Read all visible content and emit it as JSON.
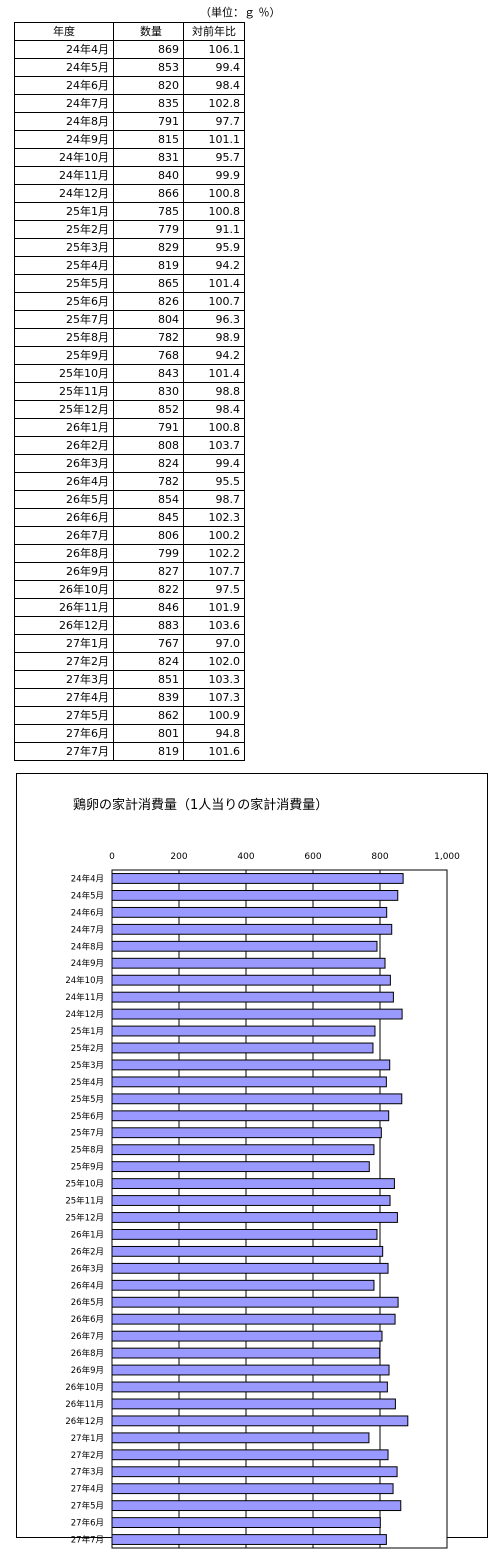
{
  "table": {
    "unit_note": "（単位：ｇ ％）",
    "headers": [
      "年度",
      "数量",
      "対前年比"
    ],
    "rows": [
      [
        "24年4月",
        "869",
        "106.1"
      ],
      [
        "24年5月",
        "853",
        "99.4"
      ],
      [
        "24年6月",
        "820",
        "98.4"
      ],
      [
        "24年7月",
        "835",
        "102.8"
      ],
      [
        "24年8月",
        "791",
        "97.7"
      ],
      [
        "24年9月",
        "815",
        "101.1"
      ],
      [
        "24年10月",
        "831",
        "95.7"
      ],
      [
        "24年11月",
        "840",
        "99.9"
      ],
      [
        "24年12月",
        "866",
        "100.8"
      ],
      [
        "25年1月",
        "785",
        "100.8"
      ],
      [
        "25年2月",
        "779",
        "91.1"
      ],
      [
        "25年3月",
        "829",
        "95.9"
      ],
      [
        "25年4月",
        "819",
        "94.2"
      ],
      [
        "25年5月",
        "865",
        "101.4"
      ],
      [
        "25年6月",
        "826",
        "100.7"
      ],
      [
        "25年7月",
        "804",
        "96.3"
      ],
      [
        "25年8月",
        "782",
        "98.9"
      ],
      [
        "25年9月",
        "768",
        "94.2"
      ],
      [
        "25年10月",
        "843",
        "101.4"
      ],
      [
        "25年11月",
        "830",
        "98.8"
      ],
      [
        "25年12月",
        "852",
        "98.4"
      ],
      [
        "26年1月",
        "791",
        "100.8"
      ],
      [
        "26年2月",
        "808",
        "103.7"
      ],
      [
        "26年3月",
        "824",
        "99.4"
      ],
      [
        "26年4月",
        "782",
        "95.5"
      ],
      [
        "26年5月",
        "854",
        "98.7"
      ],
      [
        "26年6月",
        "845",
        "102.3"
      ],
      [
        "26年7月",
        "806",
        "100.2"
      ],
      [
        "26年8月",
        "799",
        "102.2"
      ],
      [
        "26年9月",
        "827",
        "107.7"
      ],
      [
        "26年10月",
        "822",
        "97.5"
      ],
      [
        "26年11月",
        "846",
        "101.9"
      ],
      [
        "26年12月",
        "883",
        "103.6"
      ],
      [
        "27年1月",
        "767",
        "97.0"
      ],
      [
        "27年2月",
        "824",
        "102.0"
      ],
      [
        "27年3月",
        "851",
        "103.3"
      ],
      [
        "27年4月",
        "839",
        "107.3"
      ],
      [
        "27年5月",
        "862",
        "100.9"
      ],
      [
        "27年6月",
        "801",
        "94.8"
      ],
      [
        "27年7月",
        "819",
        "101.6"
      ]
    ]
  },
  "chart_data": {
    "type": "bar",
    "orientation": "horizontal",
    "title": "鶏卵の家計消費量（1人当りの家計消費量）",
    "categories": [
      "24年4月",
      "24年5月",
      "24年6月",
      "24年7月",
      "24年8月",
      "24年9月",
      "24年10月",
      "24年11月",
      "24年12月",
      "25年1月",
      "25年2月",
      "25年3月",
      "25年4月",
      "25年5月",
      "25年6月",
      "25年7月",
      "25年8月",
      "25年9月",
      "25年10月",
      "25年11月",
      "25年12月",
      "26年1月",
      "26年2月",
      "26年3月",
      "26年4月",
      "26年5月",
      "26年6月",
      "26年7月",
      "26年8月",
      "26年9月",
      "26年10月",
      "26年11月",
      "26年12月",
      "27年1月",
      "27年2月",
      "27年3月",
      "27年4月",
      "27年5月",
      "27年6月",
      "27年7月"
    ],
    "values": [
      869,
      853,
      820,
      835,
      791,
      815,
      831,
      840,
      866,
      785,
      779,
      829,
      819,
      865,
      826,
      804,
      782,
      768,
      843,
      830,
      852,
      791,
      808,
      824,
      782,
      854,
      845,
      806,
      799,
      827,
      822,
      846,
      883,
      767,
      824,
      851,
      839,
      862,
      801,
      819
    ],
    "xlim": [
      0,
      1000
    ],
    "x_ticks": [
      "0",
      "200",
      "400",
      "600",
      "800",
      "1,000"
    ],
    "x_axis_position": "top",
    "grid": true,
    "legend": "none",
    "colors": {
      "bar_fill": "#9999ff",
      "bar_stroke": "#000000",
      "grid": "#000000"
    }
  }
}
